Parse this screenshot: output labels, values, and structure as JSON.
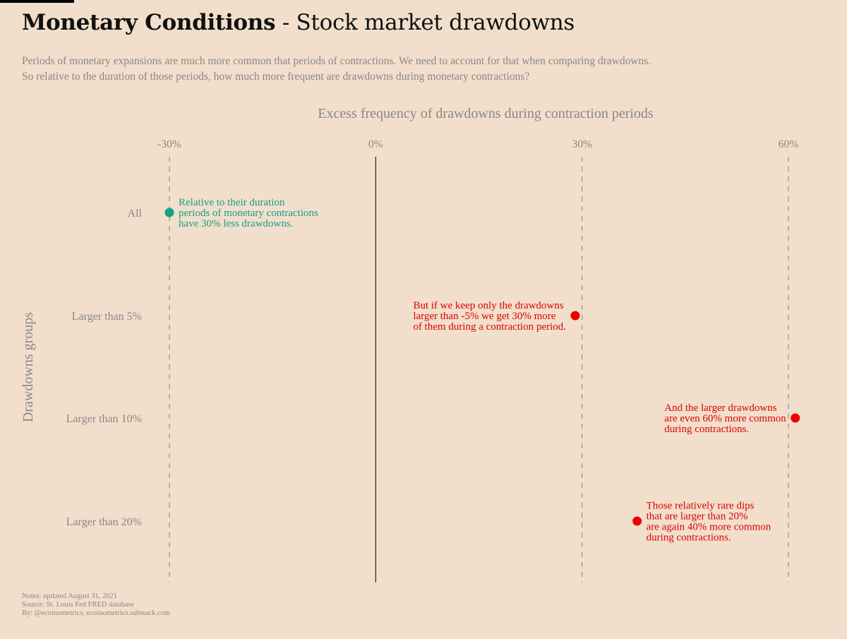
{
  "header": {
    "title_bold": "Monetary Conditions",
    "title_rest": " - Stock market drawdowns",
    "subtitle_line1": "Periods of monetary expansions are much more common that periods of contractions. We need to account for that when comparing drawdowns.",
    "subtitle_line2": "So relative to the duration of those periods, how much more frequent are drawdowns during monetary contractions?"
  },
  "chart_data": {
    "type": "scatter",
    "xlabel": "Excess frequency of drawdowns during contraction periods",
    "ylabel": "Drawdowns groups",
    "xlim": [
      -31,
      61
    ],
    "x_ticks": [
      -30,
      0,
      30,
      60
    ],
    "x_tick_labels": [
      "-30%",
      "0%",
      "30%",
      "60%"
    ],
    "x_tick_position": "top",
    "categories": [
      "All",
      "Larger than 5%",
      "Larger than 10%",
      "Larger than 20%"
    ],
    "values": [
      -30,
      29,
      61,
      38
    ],
    "point_colors": [
      "#16a085",
      "#ee0000",
      "#ee0000",
      "#ee0000"
    ],
    "annotations": [
      {
        "category": "All",
        "side": "right",
        "color": "#16a085",
        "lines": [
          "Relative to their duration",
          "periods of monetary contractions",
          "have 30% less drawdowns."
        ]
      },
      {
        "category": "Larger than 5%",
        "side": "left",
        "color": "#dd0000",
        "lines": [
          "But if we keep only the drawdowns",
          "larger than -5% we get 30% more",
          "of them during a contraction period."
        ]
      },
      {
        "category": "Larger than 10%",
        "side": "left",
        "color": "#dd0000",
        "lines": [
          "And the larger drawdowns",
          "are even 60% more common",
          "during contractions."
        ]
      },
      {
        "category": "Larger than 20%",
        "side": "right",
        "color": "#dd0000",
        "lines": [
          "Those relatively rare dips",
          "that are larger than 20%",
          "are again 40% more common",
          "during contractions."
        ]
      }
    ],
    "grid": "dashed vertical at ticks",
    "zero_line": true,
    "legend": "none"
  },
  "notes": {
    "line1": "Notes: updated August 31, 2021",
    "line2": "Source: St. Louis Fed FRED database",
    "line3": "By: @ecoinometrics, ecoinometrics.substack.com"
  },
  "colors": {
    "background": "#f1dfcc",
    "muted_text": "#8a8784",
    "green": "#16a085",
    "red": "#ee0000"
  }
}
